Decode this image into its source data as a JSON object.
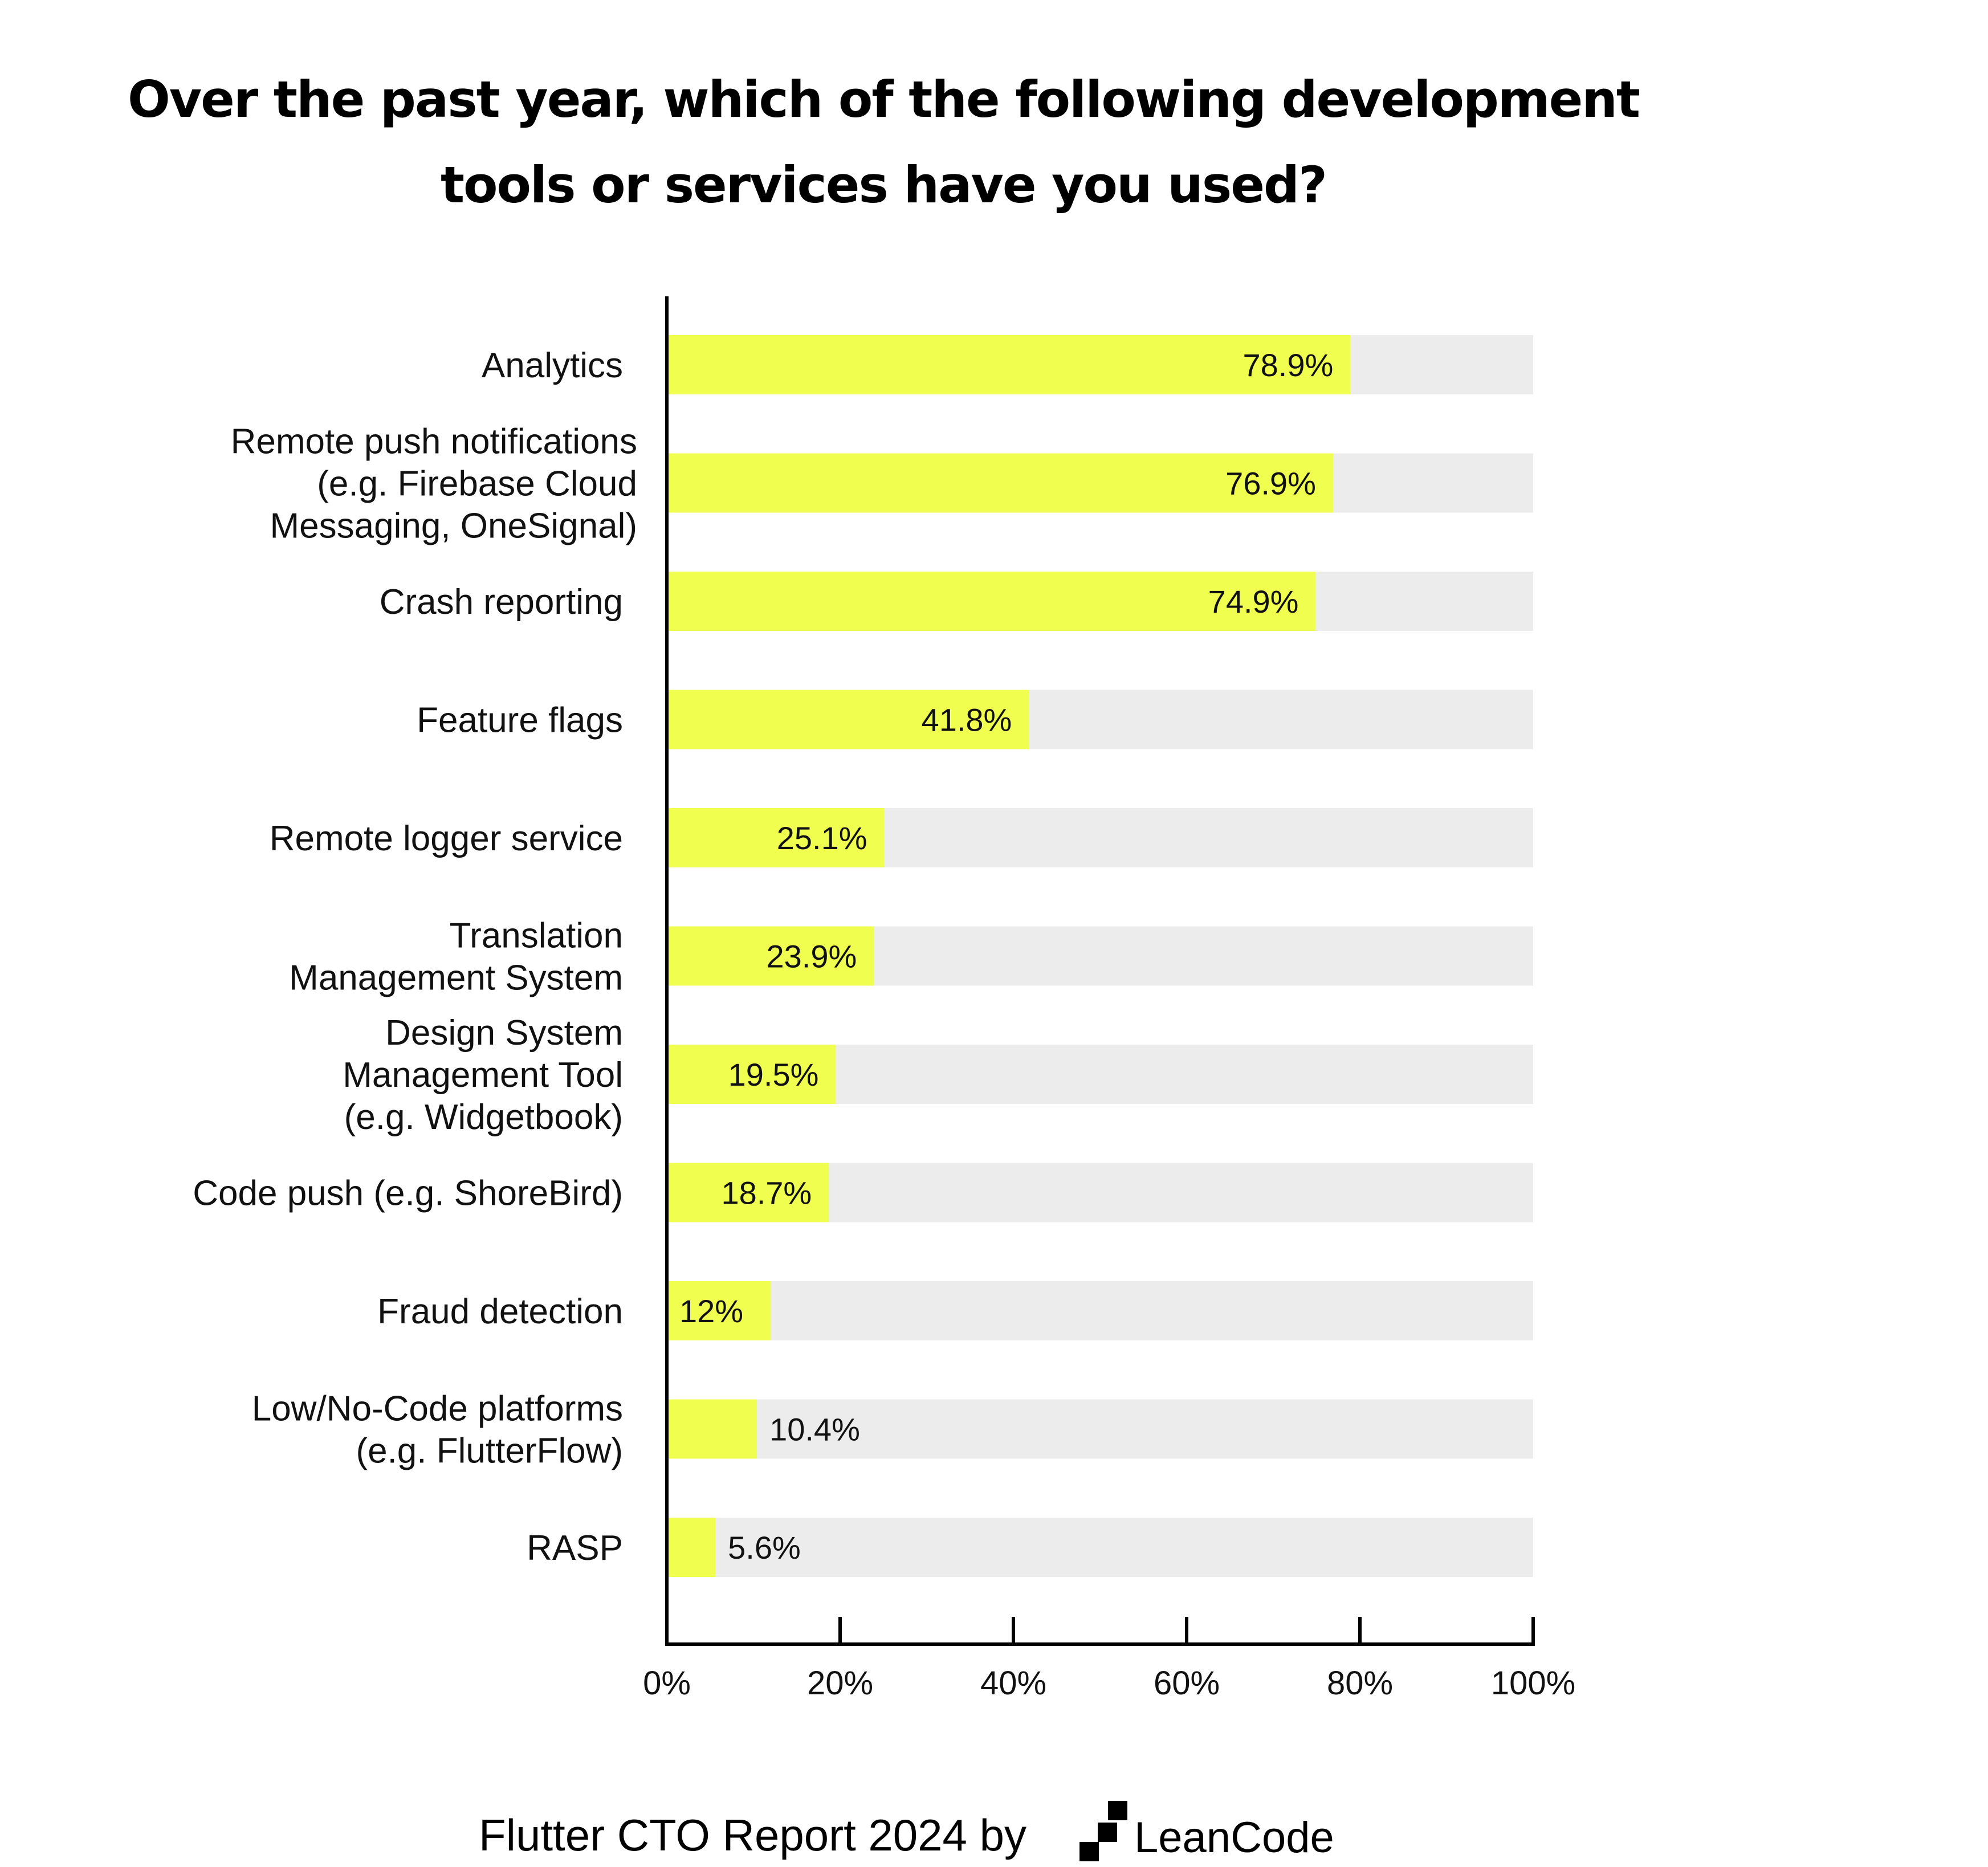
{
  "chart_data": {
    "type": "bar",
    "orientation": "horizontal",
    "title": "Over the past year, which of the following development tools or services have you used?",
    "categories": [
      "Analytics",
      "Remote push notifications (e.g. Firebase Cloud Messaging, OneSignal)",
      "Crash reporting",
      "Feature flags",
      "Remote logger service",
      "Translation Management System",
      "Design System Management Tool (e.g. Widgetbook)",
      "Code push (e.g. ShoreBird)",
      "Fraud detection",
      "Low/No-Code platforms (e.g. FlutterFlow)",
      "RASP"
    ],
    "category_lines": [
      [
        "Analytics"
      ],
      [
        "Remote push notifications",
        "(e.g. Firebase Cloud",
        "Messaging, OneSignal)"
      ],
      [
        "Crash reporting"
      ],
      [
        "Feature flags"
      ],
      [
        "Remote logger service"
      ],
      [
        "Translation",
        "Management System"
      ],
      [
        "Design System",
        "Management Tool",
        "(e.g. Widgetbook)"
      ],
      [
        "Code push (e.g. ShoreBird)"
      ],
      [
        "Fraud detection"
      ],
      [
        "Low/No-Code platforms",
        "(e.g. FlutterFlow)"
      ],
      [
        "RASP"
      ]
    ],
    "values": [
      78.9,
      76.9,
      74.9,
      41.8,
      25.1,
      23.9,
      19.5,
      18.7,
      12,
      10.4,
      5.6
    ],
    "value_labels": [
      "78.9%",
      "76.9%",
      "74.9%",
      "41.8%",
      "25.1%",
      "23.9%",
      "19.5%",
      "18.7%",
      "12%",
      "10.4%",
      "5.6%"
    ],
    "xlim": [
      0,
      100
    ],
    "xticks": [
      0,
      20,
      40,
      60,
      80,
      100
    ],
    "xtick_labels": [
      "0%",
      "20%",
      "40%",
      "60%",
      "80%",
      "100%"
    ],
    "xlabel": "",
    "ylabel": "",
    "grid": false,
    "colors": {
      "bar": "#f0ff4f",
      "track": "#ececec",
      "axis": "#000000"
    }
  },
  "footer": {
    "text": "Flutter CTO Report 2024 by",
    "logo_text": "LeanCode",
    "logo_icon": "leancode-logo-icon"
  }
}
